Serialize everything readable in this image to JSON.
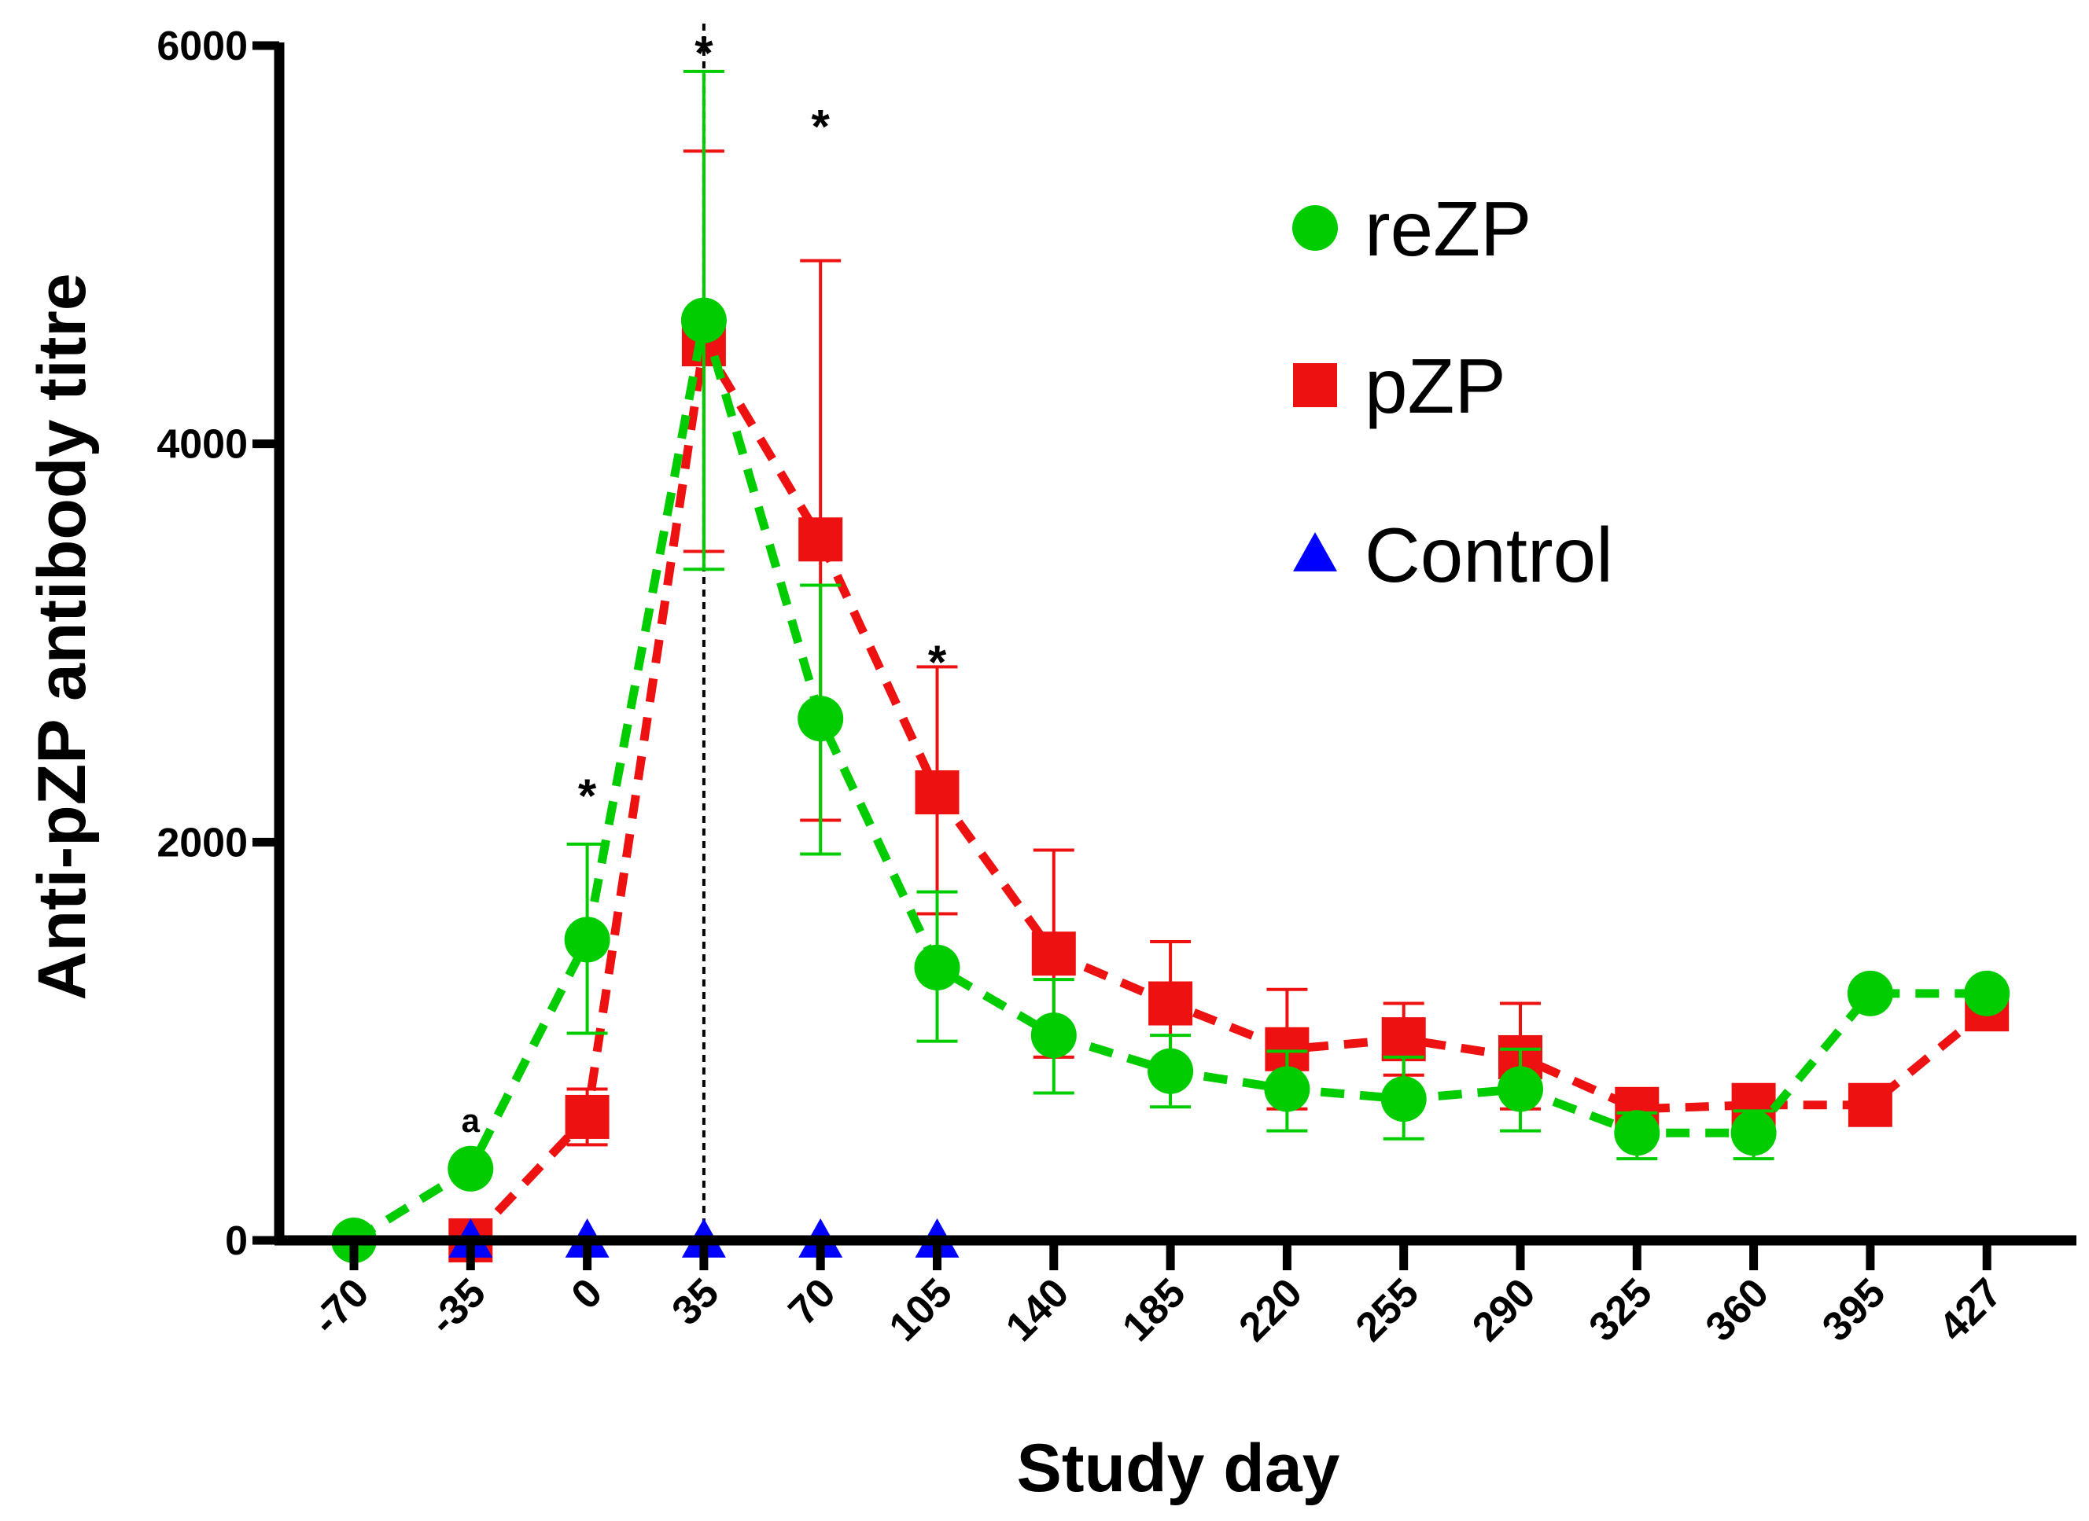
{
  "chart_data": {
    "type": "line",
    "title": "",
    "xlabel": "Study day",
    "ylabel": "Anti-pZP antibody titre",
    "categories": [
      "-70",
      "-35",
      "0",
      "35",
      "70",
      "105",
      "140",
      "185",
      "220",
      "255",
      "290",
      "325",
      "360",
      "395",
      "427"
    ],
    "ylim": [
      0,
      6000
    ],
    "yticks": [
      "0",
      "2000",
      "4000",
      "6000"
    ],
    "grid": false,
    "legend_position": "top-right",
    "reference_line": {
      "category": "35",
      "style": "dashed"
    },
    "series": [
      {
        "name": "reZP",
        "color": "#00cc00",
        "marker": "circle",
        "line_style": "dashed",
        "values": [
          0,
          360,
          1510,
          4620,
          2620,
          1370,
          1030,
          850,
          760,
          710,
          760,
          540,
          540,
          1240,
          1240
        ],
        "error_upper": [
          null,
          null,
          1990,
          5870,
          3290,
          1750,
          1310,
          1030,
          950,
          920,
          960,
          640,
          650,
          null,
          null
        ],
        "error_lower": [
          null,
          null,
          1040,
          3370,
          1940,
          1000,
          740,
          670,
          550,
          510,
          550,
          410,
          410,
          null,
          null
        ]
      },
      {
        "name": "pZP",
        "color": "#ee1111",
        "marker": "square",
        "line_style": "dashed",
        "values": [
          null,
          0,
          620,
          4500,
          3520,
          2250,
          1440,
          1190,
          960,
          1010,
          920,
          660,
          680,
          680,
          1160
        ],
        "error_upper": [
          null,
          null,
          760,
          5470,
          4920,
          2880,
          1960,
          1500,
          1260,
          1190,
          1190,
          null,
          null,
          null,
          null
        ],
        "error_lower": [
          null,
          null,
          480,
          3460,
          2110,
          1640,
          920,
          870,
          660,
          830,
          660,
          null,
          null,
          null,
          null
        ]
      },
      {
        "name": "Control",
        "color": "#0000ff",
        "marker": "triangle",
        "line_style": "solid",
        "values": [
          null,
          0,
          0,
          0,
          0,
          0,
          null,
          null,
          null,
          null,
          null,
          null,
          null,
          null,
          null
        ]
      }
    ],
    "annotations": [
      {
        "text": "a",
        "category": "-35",
        "value": 600
      },
      {
        "text": "*",
        "category": "0",
        "value": 2270
      },
      {
        "text": "*",
        "category": "35",
        "value": 6000
      },
      {
        "text": "*",
        "category": "70",
        "value": 5630
      },
      {
        "text": "*",
        "category": "105",
        "value": 2940
      }
    ]
  }
}
